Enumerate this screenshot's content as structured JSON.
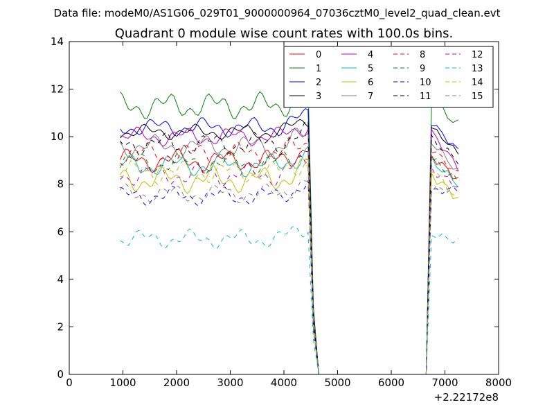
{
  "chart_data": {
    "type": "line",
    "suptitle": "Data file: modeM0/AS1G06_029T01_9000000964_07036cztM0_level2_quad_clean.evt",
    "title": "Quadrant 0 module wise count rates with 100.0s bins.",
    "xlabel": "",
    "ylabel": "",
    "xlim": [
      0,
      8000
    ],
    "ylim": [
      0,
      14
    ],
    "x_ticks": [
      "0",
      "1000",
      "2000",
      "3000",
      "4000",
      "5000",
      "6000",
      "7000",
      "8000"
    ],
    "y_ticks": [
      "0",
      "2",
      "4",
      "6",
      "8",
      "10",
      "12",
      "14"
    ],
    "x_offset_label": "+2.22172e8",
    "legend_position": "top-right",
    "bin_seconds": 100,
    "segments": [
      {
        "x_start": 950,
        "x_end": 4450,
        "step": 50
      },
      {
        "x_start": 6650,
        "x_end": 7250,
        "step": 100
      }
    ],
    "gap_x": [
      4550,
      4650,
      6550
    ],
    "series": [
      {
        "name": "0",
        "color": "#ff0000",
        "dash": "solid",
        "level": 9.0,
        "amp": 0.3,
        "end_level": 8.2
      },
      {
        "name": "1",
        "color": "#008000",
        "dash": "solid",
        "level": 11.3,
        "amp": 0.35,
        "end_level": 10.5
      },
      {
        "name": "2",
        "color": "#0000ff",
        "dash": "solid",
        "level": 10.4,
        "amp": 0.25,
        "end_level": 9.4
      },
      {
        "name": "3",
        "color": "#000000",
        "dash": "solid",
        "level": 10.2,
        "amp": 0.2,
        "end_level": 9.3
      },
      {
        "name": "4",
        "color": "#bf00bf",
        "dash": "solid",
        "level": 10.0,
        "amp": 0.25,
        "end_level": 8.7
      },
      {
        "name": "5",
        "color": "#00bfbf",
        "dash": "solid",
        "level": 8.8,
        "amp": 0.3,
        "end_level": 8.0
      },
      {
        "name": "6",
        "color": "#bfbf00",
        "dash": "solid",
        "level": 8.2,
        "amp": 0.35,
        "end_level": 7.4
      },
      {
        "name": "7",
        "color": "#808080",
        "dash": "solid",
        "level": 9.6,
        "amp": 0.3,
        "end_level": 8.5
      },
      {
        "name": "8",
        "color": "#ff0000",
        "dash": "dashed",
        "level": 9.3,
        "amp": 0.3,
        "end_level": 8.4
      },
      {
        "name": "9",
        "color": "#008000",
        "dash": "dashed",
        "level": 8.9,
        "amp": 0.3,
        "end_level": 8.1
      },
      {
        "name": "10",
        "color": "#0000ff",
        "dash": "dashed",
        "level": 7.5,
        "amp": 0.25,
        "end_level": 7.8
      },
      {
        "name": "11",
        "color": "#000000",
        "dash": "dashed",
        "level": 9.7,
        "amp": 0.3,
        "end_level": 9.0
      },
      {
        "name": "12",
        "color": "#bf00bf",
        "dash": "dashed",
        "level": 8.4,
        "amp": 0.3,
        "end_level": 7.9
      },
      {
        "name": "13",
        "color": "#00bfbf",
        "dash": "dashed",
        "level": 5.7,
        "amp": 0.25,
        "end_level": 5.6
      },
      {
        "name": "14",
        "color": "#bfbf00",
        "dash": "dashed",
        "level": 8.5,
        "amp": 0.3,
        "end_level": 7.3
      },
      {
        "name": "15",
        "color": "#808080",
        "dash": "dashed",
        "level": 7.6,
        "amp": 0.25,
        "end_level": 7.8
      }
    ]
  }
}
